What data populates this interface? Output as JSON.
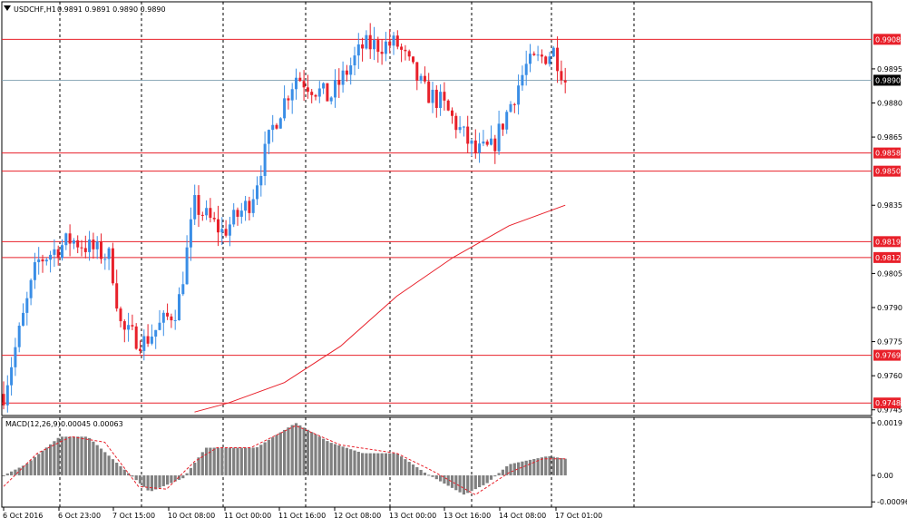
{
  "symbol_label": "USDCHF,H1",
  "ohlc_label": "0.9891 0.9891 0.9890 0.9890",
  "indicator_label": "MACD(12,26,9)",
  "indicator_values": "0.00045 0.00063",
  "current_price": "0.9890",
  "colors": {
    "bull": "#3a8ee6",
    "bear": "#e8202a",
    "level": "#e8202a",
    "ma": "#e8202a",
    "histogram": "#808080",
    "signal": "#e8202a",
    "grid": "#000000",
    "current_price_bg": "#000000"
  },
  "chart_data": [
    {
      "type": "candlestick",
      "ylim": [
        0.97425,
        0.99245
      ],
      "y_ticks": [
        "0.9895",
        "0.9880",
        "0.9865",
        "0.9835",
        "0.9805",
        "0.9790",
        "0.9775",
        "0.9760",
        "0.9745"
      ],
      "x_ticks": [
        "6 Oct 2016",
        "6 Oct 23:00",
        "7 Oct 15:00",
        "10 Oct 08:00",
        "11 Oct 00:00",
        "11 Oct 16:00",
        "12 Oct 08:00",
        "13 Oct 00:00",
        "13 Oct 16:00",
        "14 Oct 08:00",
        "17 Oct 01:00"
      ],
      "levels": [
        "0.9908",
        "0.9858",
        "0.9850",
        "0.9819",
        "0.9812",
        "0.9769",
        "0.9748"
      ],
      "moving_average_series": {
        "x": [
          0.34,
          0.4,
          0.5,
          0.6,
          0.7,
          0.8,
          0.9,
          1.0
        ],
        "y": [
          0.9744,
          0.9748,
          0.9757,
          0.9773,
          0.9795,
          0.9812,
          0.9826,
          0.9835
        ]
      },
      "price_path": [
        {
          "x": 0.0,
          "y": 0.9752
        },
        {
          "x": 0.06,
          "y": 0.981
        },
        {
          "x": 0.12,
          "y": 0.982
        },
        {
          "x": 0.19,
          "y": 0.9812
        },
        {
          "x": 0.21,
          "y": 0.978
        },
        {
          "x": 0.25,
          "y": 0.9775
        },
        {
          "x": 0.31,
          "y": 0.979
        },
        {
          "x": 0.34,
          "y": 0.9835
        },
        {
          "x": 0.39,
          "y": 0.9823
        },
        {
          "x": 0.44,
          "y": 0.9837
        },
        {
          "x": 0.48,
          "y": 0.987
        },
        {
          "x": 0.52,
          "y": 0.9892
        },
        {
          "x": 0.58,
          "y": 0.9882
        },
        {
          "x": 0.64,
          "y": 0.9905
        },
        {
          "x": 0.7,
          "y": 0.9906
        },
        {
          "x": 0.75,
          "y": 0.9885
        },
        {
          "x": 0.78,
          "y": 0.988
        },
        {
          "x": 0.84,
          "y": 0.9858
        },
        {
          "x": 0.87,
          "y": 0.986
        },
        {
          "x": 0.93,
          "y": 0.9896
        },
        {
          "x": 0.98,
          "y": 0.9903
        },
        {
          "x": 1.0,
          "y": 0.989
        }
      ]
    },
    {
      "type": "bar",
      "ylim": [
        -0.00115,
        0.0021
      ],
      "y_ticks": [
        "0.0019",
        "0.00",
        "-0.00096"
      ],
      "histogram_path": [
        {
          "x": 0.0,
          "y": 0.0
        },
        {
          "x": 0.04,
          "y": 0.0004
        },
        {
          "x": 0.1,
          "y": 0.0014
        },
        {
          "x": 0.15,
          "y": 0.0014
        },
        {
          "x": 0.21,
          "y": 0.0003
        },
        {
          "x": 0.26,
          "y": -0.0006
        },
        {
          "x": 0.32,
          "y": -0.0001
        },
        {
          "x": 0.36,
          "y": 0.001
        },
        {
          "x": 0.45,
          "y": 0.001
        },
        {
          "x": 0.52,
          "y": 0.0019
        },
        {
          "x": 0.58,
          "y": 0.0012
        },
        {
          "x": 0.64,
          "y": 0.0008
        },
        {
          "x": 0.7,
          "y": 0.0008
        },
        {
          "x": 0.75,
          "y": 0.0001
        },
        {
          "x": 0.82,
          "y": -0.0007
        },
        {
          "x": 0.86,
          "y": -0.0003
        },
        {
          "x": 0.9,
          "y": 0.0004
        },
        {
          "x": 0.97,
          "y": 0.0007
        },
        {
          "x": 1.0,
          "y": 0.0006
        }
      ],
      "signal_path": [
        {
          "x": 0.0,
          "y": -0.0004
        },
        {
          "x": 0.06,
          "y": 0.0008
        },
        {
          "x": 0.12,
          "y": 0.0014
        },
        {
          "x": 0.18,
          "y": 0.0012
        },
        {
          "x": 0.24,
          "y": -0.0004
        },
        {
          "x": 0.29,
          "y": -0.0005
        },
        {
          "x": 0.34,
          "y": 0.0005
        },
        {
          "x": 0.38,
          "y": 0.001
        },
        {
          "x": 0.44,
          "y": 0.001
        },
        {
          "x": 0.52,
          "y": 0.0018
        },
        {
          "x": 0.6,
          "y": 0.0011
        },
        {
          "x": 0.7,
          "y": 0.0008
        },
        {
          "x": 0.76,
          "y": 0.0002
        },
        {
          "x": 0.84,
          "y": -0.0007
        },
        {
          "x": 0.9,
          "y": 0.0001
        },
        {
          "x": 0.96,
          "y": 0.0006
        },
        {
          "x": 1.0,
          "y": 0.0006
        }
      ]
    }
  ]
}
